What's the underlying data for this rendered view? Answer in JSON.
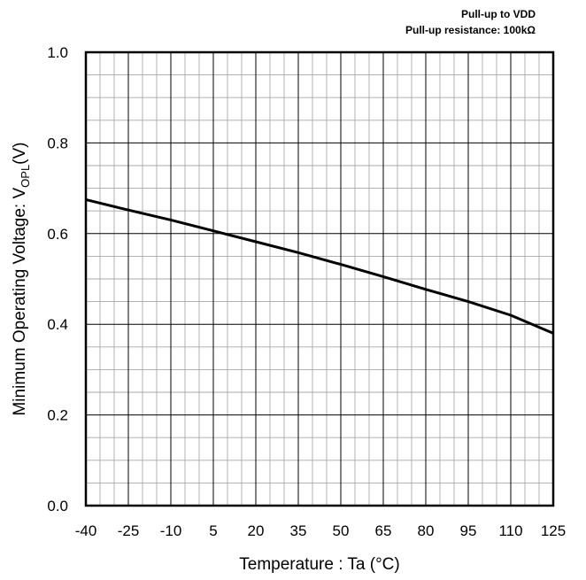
{
  "chart_data": {
    "type": "line",
    "notes": [
      "Pull-up to VDD",
      "Pull-up resistance: 100kΩ"
    ],
    "ylabel": "Minimum Operating Voltage: V",
    "ylabel_sub": "OPL",
    "ylabel_unit": "(V)",
    "xlabel": "Temperature : Ta (°C)",
    "xlim": [
      -40,
      125
    ],
    "ylim": [
      0.0,
      1.0
    ],
    "xticks": [
      -40,
      -25,
      -10,
      5,
      20,
      35,
      50,
      65,
      80,
      95,
      110,
      125
    ],
    "xtick_labels": [
      "-40",
      "-25",
      "-10",
      "5",
      "20",
      "35",
      "50",
      "65",
      "80",
      "95",
      "110",
      "125"
    ],
    "yticks": [
      0.0,
      0.2,
      0.4,
      0.6,
      0.8,
      1.0
    ],
    "ytick_labels": [
      "0.0",
      "0.2",
      "0.4",
      "0.6",
      "0.8",
      "1.0"
    ],
    "grid": true,
    "series": [
      {
        "x": [
          -40,
          -25,
          -10,
          5,
          20,
          35,
          50,
          65,
          80,
          95,
          110,
          125
        ],
        "y": [
          0.675,
          0.652,
          0.63,
          0.606,
          0.582,
          0.558,
          0.532,
          0.505,
          0.477,
          0.45,
          0.42,
          0.38
        ],
        "color": "#000000"
      }
    ]
  }
}
